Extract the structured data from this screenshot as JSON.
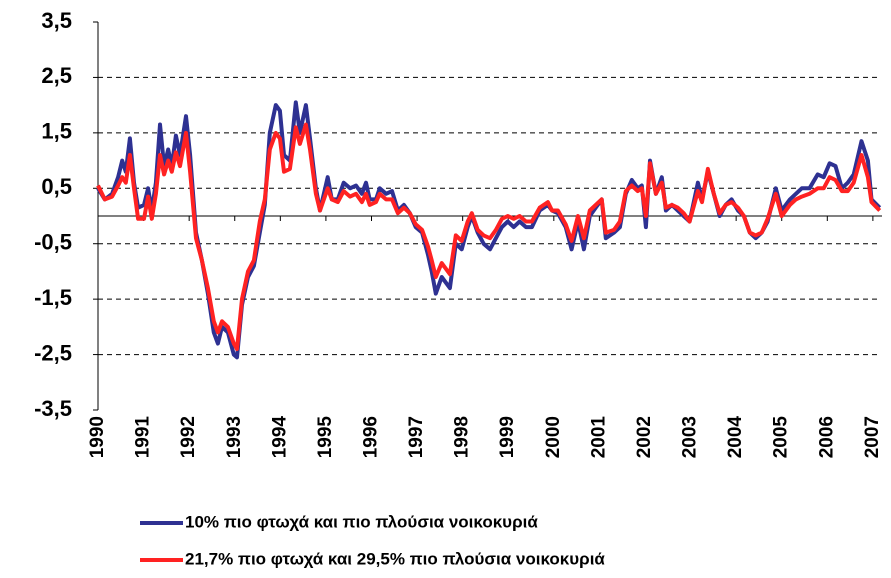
{
  "chart_data": {
    "type": "line",
    "x": [
      1990.0,
      1990.15,
      1990.31,
      1990.44,
      1990.53,
      1990.61,
      1990.7,
      1990.79,
      1990.88,
      1991.01,
      1991.1,
      1991.18,
      1991.27,
      1991.36,
      1991.45,
      1991.54,
      1991.62,
      1991.71,
      1991.8,
      1991.93,
      1992.02,
      1992.15,
      1992.28,
      1992.41,
      1992.54,
      1992.63,
      1992.72,
      1992.85,
      1992.98,
      1993.05,
      1993.16,
      1993.29,
      1993.42,
      1993.55,
      1993.66,
      1993.77,
      1993.9,
      1993.99,
      1994.08,
      1994.21,
      1994.34,
      1994.43,
      1994.56,
      1994.65,
      1994.78,
      1994.87,
      1995.04,
      1995.13,
      1995.26,
      1995.39,
      1995.53,
      1995.66,
      1995.79,
      1995.88,
      1995.96,
      1996.1,
      1996.18,
      1996.32,
      1996.45,
      1996.58,
      1996.71,
      1996.84,
      1996.97,
      1997.11,
      1997.24,
      1997.32,
      1997.41,
      1997.54,
      1997.72,
      1997.85,
      1997.98,
      1998.11,
      1998.2,
      1998.33,
      1998.46,
      1998.6,
      1998.73,
      1998.86,
      1998.99,
      1999.12,
      1999.25,
      1999.39,
      1999.52,
      1999.69,
      1999.87,
      1999.96,
      2000.09,
      2000.26,
      2000.39,
      2000.53,
      2000.66,
      2000.79,
      2000.92,
      2001.05,
      2001.14,
      2001.32,
      2001.45,
      2001.58,
      2001.71,
      2001.84,
      2001.93,
      2002.02,
      2002.11,
      2002.24,
      2002.37,
      2002.46,
      2002.59,
      2002.72,
      2002.85,
      2002.98,
      2003.16,
      2003.25,
      2003.38,
      2003.51,
      2003.64,
      2003.77,
      2003.9,
      2004.04,
      2004.17,
      2004.3,
      2004.43,
      2004.56,
      2004.69,
      2004.87,
      2005.0,
      2005.18,
      2005.31,
      2005.44,
      2005.61,
      2005.79,
      2005.92,
      2006.05,
      2006.18,
      2006.32,
      2006.45,
      2006.58,
      2006.75,
      2006.89,
      2006.97,
      2007.15
    ],
    "series": [
      {
        "name": "10% πιο φτωχά και πιο πλούσια νοικοκυριά",
        "color": "#2e3192",
        "values": [
          0.5,
          0.3,
          0.4,
          0.7,
          1.0,
          0.8,
          1.4,
          0.6,
          0.15,
          0.2,
          0.5,
          0.1,
          0.6,
          1.65,
          0.9,
          1.2,
          0.9,
          1.45,
          1.1,
          1.8,
          1.1,
          -0.3,
          -0.8,
          -1.4,
          -2.1,
          -2.3,
          -2.0,
          -2.1,
          -2.5,
          -2.55,
          -1.6,
          -1.1,
          -0.9,
          -0.3,
          0.2,
          1.5,
          2.0,
          1.9,
          1.1,
          1.0,
          2.05,
          1.5,
          2.0,
          1.4,
          0.5,
          0.1,
          0.7,
          0.3,
          0.3,
          0.6,
          0.5,
          0.55,
          0.4,
          0.6,
          0.3,
          0.3,
          0.5,
          0.4,
          0.45,
          0.1,
          0.2,
          0.05,
          -0.2,
          -0.3,
          -0.7,
          -1.0,
          -1.4,
          -1.1,
          -1.3,
          -0.5,
          -0.6,
          -0.2,
          0,
          -0.3,
          -0.5,
          -0.6,
          -0.4,
          -0.2,
          -0.1,
          -0.2,
          -0.1,
          -0.2,
          -0.2,
          0.1,
          0.2,
          0.1,
          0.05,
          -0.2,
          -0.6,
          -0.1,
          -0.6,
          0,
          0.15,
          0.3,
          -0.4,
          -0.3,
          -0.2,
          0.4,
          0.65,
          0.5,
          0.55,
          -0.2,
          1.0,
          0.4,
          0.7,
          0.1,
          0.2,
          0.1,
          0.0,
          -0.1,
          0.6,
          0.3,
          0.8,
          0.4,
          0.0,
          0.2,
          0.3,
          0.1,
          0.0,
          -0.3,
          -0.4,
          -0.3,
          -0.1,
          0.5,
          0.1,
          0.3,
          0.4,
          0.5,
          0.5,
          0.75,
          0.7,
          0.95,
          0.9,
          0.5,
          0.6,
          0.75,
          1.35,
          1.0,
          0.3,
          0.15
        ]
      },
      {
        "name": "21,7% πιο φτωχά και 29,5% πιο πλούσια νοικοκυριά",
        "color": "#ff2222",
        "values": [
          0.55,
          0.3,
          0.35,
          0.55,
          0.7,
          0.6,
          1.1,
          0.5,
          -0.05,
          -0.05,
          0.35,
          -0.05,
          0.4,
          1.1,
          0.75,
          1.0,
          0.8,
          1.15,
          0.9,
          1.5,
          0.8,
          -0.4,
          -0.8,
          -1.3,
          -1.9,
          -2.1,
          -1.9,
          -2.0,
          -2.3,
          -2.4,
          -1.5,
          -1.0,
          -0.8,
          -0.1,
          0.3,
          1.2,
          1.5,
          1.4,
          0.8,
          0.85,
          1.6,
          1.3,
          1.65,
          1.2,
          0.4,
          0.1,
          0.5,
          0.3,
          0.25,
          0.45,
          0.35,
          0.4,
          0.25,
          0.4,
          0.2,
          0.25,
          0.4,
          0.3,
          0.3,
          0.05,
          0.15,
          0.05,
          -0.15,
          -0.25,
          -0.55,
          -0.8,
          -1.1,
          -0.85,
          -1.05,
          -0.35,
          -0.45,
          -0.1,
          0.05,
          -0.25,
          -0.35,
          -0.4,
          -0.25,
          -0.05,
          0.0,
          -0.05,
          0.0,
          -0.1,
          -0.1,
          0.15,
          0.25,
          0.1,
          0.1,
          -0.15,
          -0.45,
          0.0,
          -0.4,
          0.1,
          0.2,
          0.3,
          -0.3,
          -0.25,
          -0.1,
          0.45,
          0.55,
          0.45,
          0.5,
          0.0,
          0.95,
          0.4,
          0.6,
          0.15,
          0.2,
          0.15,
          0.05,
          -0.1,
          0.45,
          0.25,
          0.85,
          0.4,
          0.05,
          0.2,
          0.25,
          0.15,
          0.0,
          -0.3,
          -0.35,
          -0.3,
          -0.05,
          0.4,
          0.0,
          0.2,
          0.3,
          0.35,
          0.4,
          0.5,
          0.5,
          0.7,
          0.65,
          0.45,
          0.45,
          0.6,
          1.1,
          0.7,
          0.25,
          0.1
        ]
      }
    ],
    "xlim": [
      1990,
      2007.2
    ],
    "xticks": [
      1990,
      1991,
      1992,
      1993,
      1994,
      1995,
      1996,
      1997,
      1998,
      1999,
      2000,
      2001,
      2002,
      2003,
      2004,
      2005,
      2006,
      2007
    ],
    "ylim": [
      -3.5,
      3.5
    ],
    "yticks": [
      {
        "value": -3.5,
        "label": "-3,5"
      },
      {
        "value": -2.5,
        "label": "-2,5"
      },
      {
        "value": -1.5,
        "label": "-1,5"
      },
      {
        "value": -0.5,
        "label": "-0,5"
      },
      {
        "value": 0.5,
        "label": "0,5"
      },
      {
        "value": 1.5,
        "label": "1,5"
      },
      {
        "value": 2.5,
        "label": "2,5"
      },
      {
        "value": 3.5,
        "label": "3,5"
      }
    ],
    "grid": true,
    "legend": "bottom"
  }
}
